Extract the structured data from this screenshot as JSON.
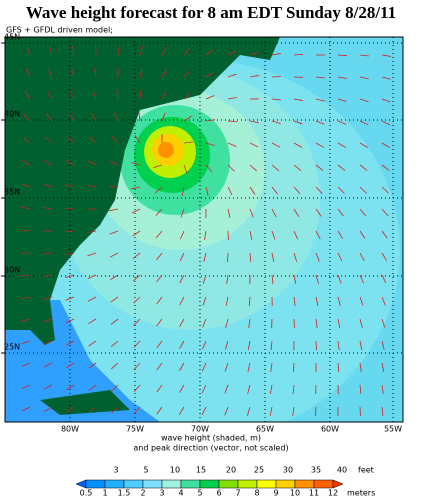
{
  "title": "Wave height forecast for 8 am EDT Sunday 8/28/11",
  "subtitle": "GFS + GFDL driven model;",
  "lat_labels": [
    "45N",
    "40N",
    "35N",
    "30N",
    "25N"
  ],
  "lon_labels": [
    "80W",
    "75W",
    "70W",
    "65W",
    "60W",
    "55W"
  ],
  "caption": [
    "wave height (shaded, m)",
    "and peak direction (vector, not scaled)"
  ],
  "legend": {
    "feet_labels": [
      "3",
      "5",
      "10",
      "15",
      "20",
      "25",
      "30",
      "35",
      "40"
    ],
    "feet_unit": "feet",
    "meter_labels": [
      "0.5",
      "1",
      "1.5",
      "2",
      "3",
      "4",
      "5",
      "6",
      "7",
      "8",
      "9",
      "10",
      "11",
      "12"
    ],
    "meter_unit": "meters"
  }
}
